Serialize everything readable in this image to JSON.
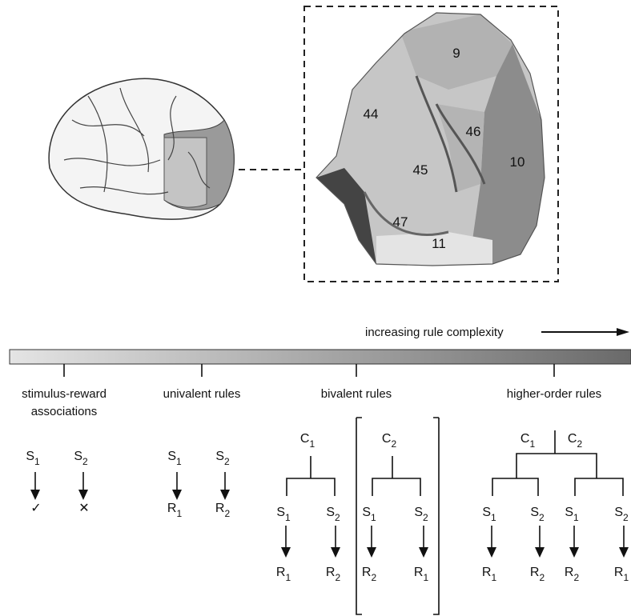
{
  "brain": {
    "areas": [
      "9",
      "44",
      "46",
      "45",
      "10",
      "47",
      "11"
    ]
  },
  "complexity_label": "increasing rule complexity",
  "rule_types": [
    {
      "title": [
        "stimulus-reward",
        "associations"
      ],
      "stimuli": [
        {
          "letter": "S",
          "sub": "1"
        },
        {
          "letter": "S",
          "sub": "2"
        }
      ],
      "outcomes": [
        "✓",
        "✕"
      ]
    },
    {
      "title": [
        "univalent rules"
      ],
      "stimuli": [
        {
          "letter": "S",
          "sub": "1"
        },
        {
          "letter": "S",
          "sub": "2"
        }
      ],
      "outcomes": [
        {
          "letter": "R",
          "sub": "1"
        },
        {
          "letter": "R",
          "sub": "2"
        }
      ]
    },
    {
      "title": [
        "bivalent rules"
      ],
      "contexts": [
        {
          "letter": "C",
          "sub": "1"
        },
        {
          "letter": "C",
          "sub": "2"
        }
      ],
      "stimuli": [
        {
          "letter": "S",
          "sub": "1"
        },
        {
          "letter": "S",
          "sub": "2"
        },
        {
          "letter": "S",
          "sub": "1"
        },
        {
          "letter": "S",
          "sub": "2"
        }
      ],
      "outcomes": [
        {
          "letter": "R",
          "sub": "1"
        },
        {
          "letter": "R",
          "sub": "2"
        },
        {
          "letter": "R",
          "sub": "2"
        },
        {
          "letter": "R",
          "sub": "1"
        }
      ]
    },
    {
      "title": [
        "higher-order rules"
      ],
      "contexts": [
        {
          "letter": "C",
          "sub": "1"
        },
        {
          "letter": "C",
          "sub": "2"
        }
      ],
      "stimuli": [
        {
          "letter": "S",
          "sub": "1"
        },
        {
          "letter": "S",
          "sub": "2"
        },
        {
          "letter": "S",
          "sub": "1"
        },
        {
          "letter": "S",
          "sub": "2"
        }
      ],
      "outcomes": [
        {
          "letter": "R",
          "sub": "1"
        },
        {
          "letter": "R",
          "sub": "2"
        },
        {
          "letter": "R",
          "sub": "2"
        },
        {
          "letter": "R",
          "sub": "1"
        }
      ]
    }
  ]
}
